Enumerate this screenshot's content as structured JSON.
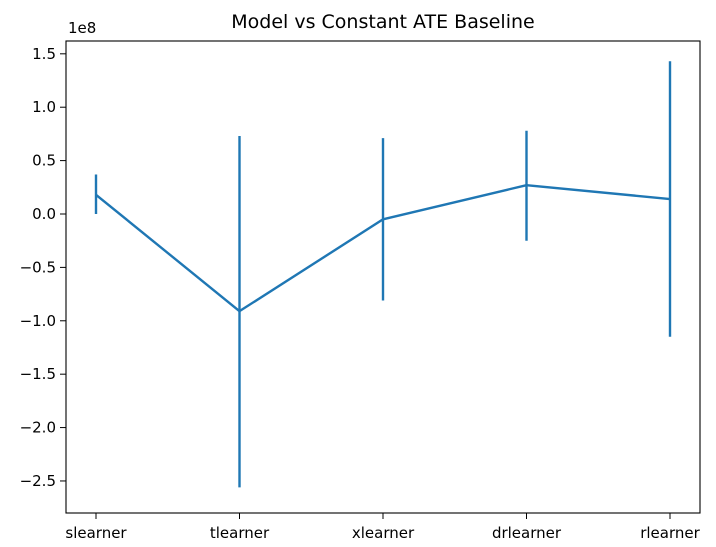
{
  "chart_data": {
    "type": "line",
    "title": "Model vs Constant ATE Baseline",
    "xlabel": "",
    "ylabel": "",
    "y_offset_label": "1e8",
    "y_scale": 100000000,
    "categories": [
      "slearner",
      "tlearner",
      "xlearner",
      "drlearner",
      "rlearner"
    ],
    "values": [
      0.18,
      -0.91,
      -0.05,
      0.27,
      0.14
    ],
    "error_lower": [
      0.0,
      -2.56,
      -0.81,
      -0.25,
      -1.15
    ],
    "error_upper": [
      0.37,
      0.73,
      0.71,
      0.78,
      1.43
    ],
    "yticks": [
      "1.5",
      "1.0",
      "0.5",
      "0.0",
      "−0.5",
      "−1.0",
      "−1.5",
      "−2.0",
      "−2.5"
    ],
    "ytick_values": [
      1.5,
      1.0,
      0.5,
      0.0,
      -0.5,
      -1.0,
      -1.5,
      -2.0,
      -2.5
    ],
    "ylim": [
      -2.8,
      1.62
    ],
    "grid": false,
    "line_color": "#1f77b4"
  }
}
